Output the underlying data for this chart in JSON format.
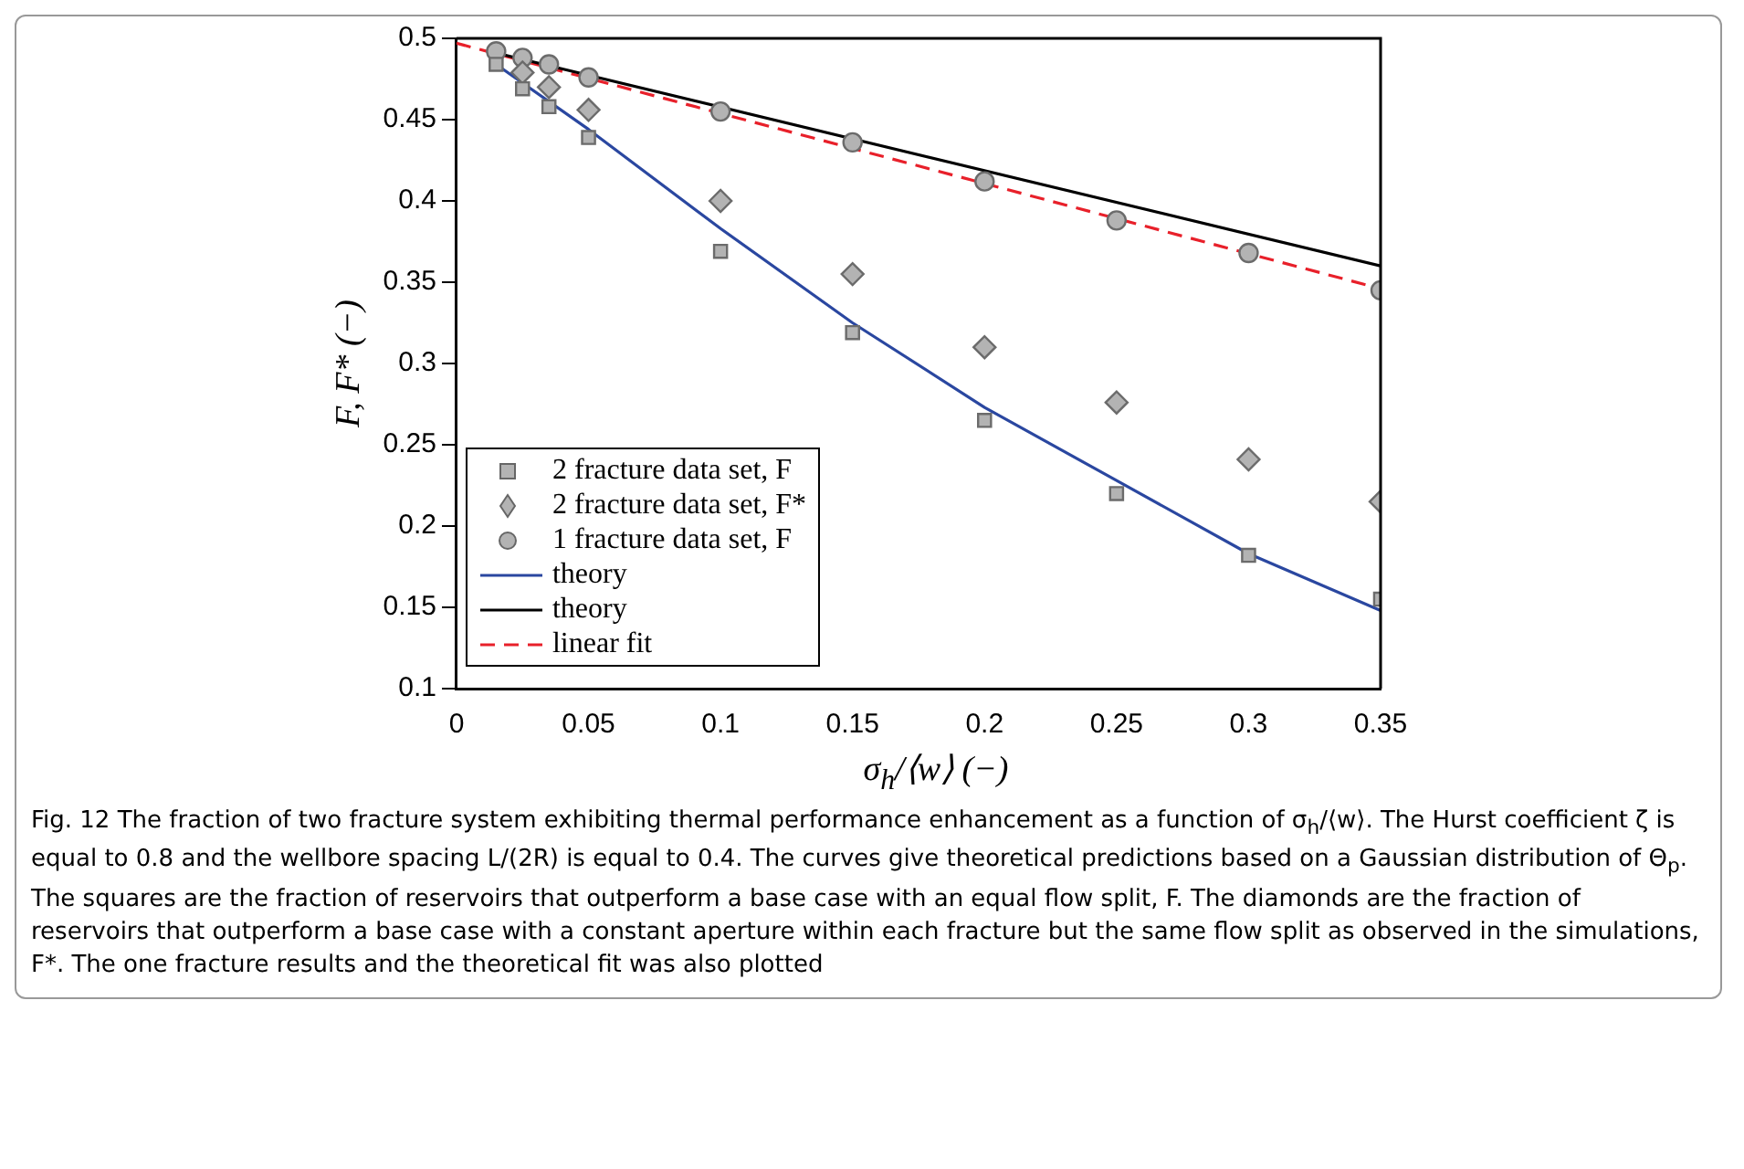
{
  "chart_data": {
    "type": "scatter",
    "xlabel": "σ$_{h}$/⟨w⟩ (−)",
    "ylabel": "F, F* (−)",
    "xlim": [
      0,
      0.35
    ],
    "ylim": [
      0.1,
      0.5
    ],
    "xticks": [
      0,
      0.05,
      0.1,
      0.15,
      0.2,
      0.25,
      0.3,
      0.35
    ],
    "yticks": [
      0.1,
      0.15,
      0.2,
      0.25,
      0.3,
      0.35,
      0.4,
      0.45,
      0.5
    ],
    "grid": false,
    "legend": "bottom left",
    "x": [
      0.015,
      0.025,
      0.035,
      0.05,
      0.1,
      0.15,
      0.2,
      0.25,
      0.3,
      0.35
    ],
    "series": [
      {
        "name": "2 fracture data set, F",
        "marker": "square",
        "color": "#b3b3b3",
        "values": [
          0.484,
          0.469,
          0.458,
          0.439,
          0.369,
          0.319,
          0.265,
          0.22,
          0.182,
          0.155
        ]
      },
      {
        "name": "2 fracture data set, F*",
        "marker": "diamond",
        "color": "#b3b3b3",
        "values": [
          null,
          0.479,
          0.47,
          0.456,
          0.4,
          0.355,
          0.31,
          0.276,
          0.241,
          0.215
        ]
      },
      {
        "name": "1 fracture data set, F",
        "marker": "circle",
        "color": "#b3b3b3",
        "values": [
          0.492,
          0.488,
          0.484,
          0.476,
          0.455,
          0.436,
          0.412,
          0.388,
          0.368,
          0.345
        ]
      },
      {
        "name": "theory",
        "type": "line",
        "marker": "none",
        "line_style": "solid",
        "color": "#2a47a0",
        "x": [
          0.015,
          0.05,
          0.1,
          0.15,
          0.2,
          0.25,
          0.3,
          0.35
        ],
        "values": [
          0.484,
          0.444,
          0.383,
          0.325,
          0.273,
          0.228,
          0.183,
          0.148
        ]
      },
      {
        "name": "theory",
        "type": "line",
        "marker": "none",
        "line_style": "solid",
        "color": "#000000",
        "x": [
          0.015,
          0.35
        ],
        "values": [
          0.491,
          0.36
        ]
      },
      {
        "name": "linear fit",
        "type": "line",
        "marker": "none",
        "line_style": "dashed",
        "color": "#e8202a",
        "x": [
          0,
          0.35
        ],
        "values": [
          0.497,
          0.346
        ]
      }
    ],
    "annotations": [
      "Fig. 12  The fraction of two fracture system exhibiting thermal performance enhancement as a function of σ$_{h}$/⟨w⟩. The Hurst coefficient ζ is equal to 0.8 and the wellbore spacing L/(2R) is equal to 0.4. The curves give theoretical predictions based on a Gaussian distribution of Θ$_{p}$. The squares are the fraction of reservoirs that outperform a base case with an equal flow split, F. The diamonds are the fraction of reservoirs that outperform a base case with a constant aperture within each fracture but the same flow split as observed in the simulations, F*. The one fracture results and the theoretical fit was also plotted"
    ]
  }
}
